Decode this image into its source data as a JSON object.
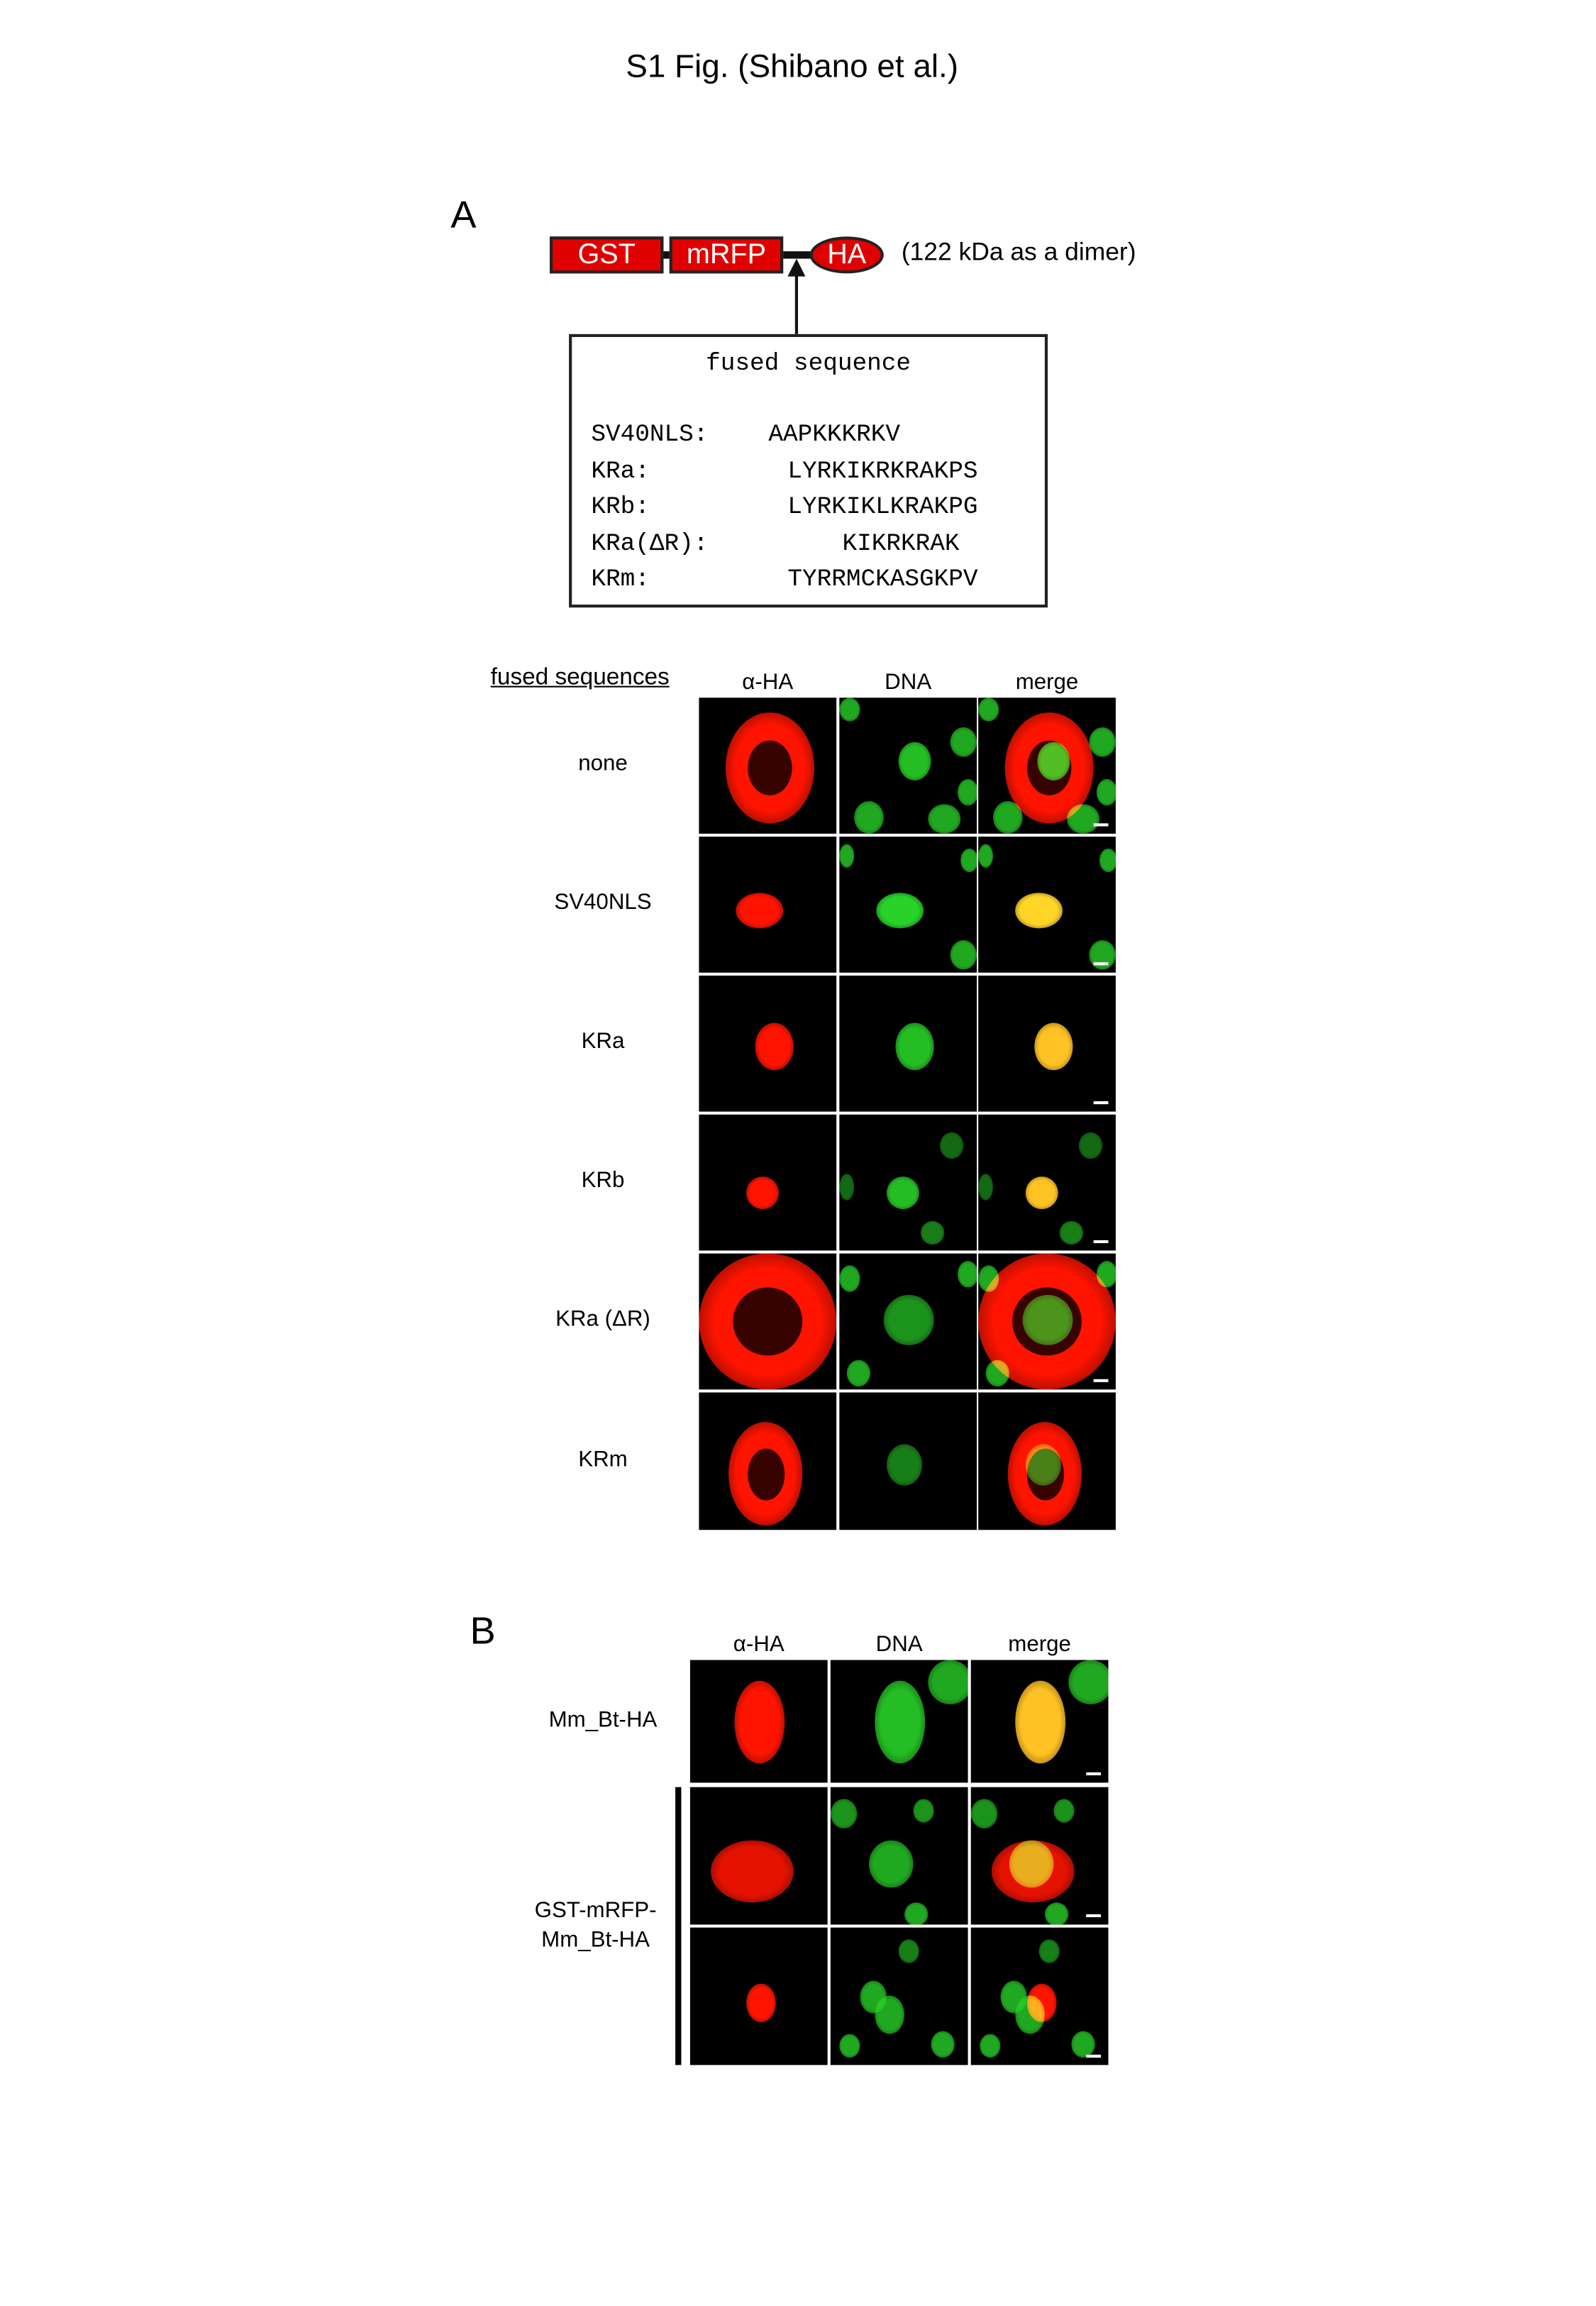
{
  "title": "S1 Fig. (Shibano et al.)",
  "panel_a": {
    "label": "A",
    "construct": {
      "gst": "GST",
      "mrfp": "mRFP",
      "ha": "HA",
      "note": "(122 kDa as a dimer)"
    },
    "sequence_box": {
      "heading": "fused sequence",
      "rows": [
        {
          "name": "SV40NLS:",
          "seq": "AAPKKKRKV"
        },
        {
          "name": "KRa:",
          "seq": "LYRKIKRKRAKPS"
        },
        {
          "name": "KRb:",
          "seq": "LYRKIKLKRAKPG"
        },
        {
          "name": "KRa(ΔR):",
          "seq": "KIKRKRAK"
        },
        {
          "name": "KRm:",
          "seq": "TYRRMCKASGKPV"
        }
      ]
    },
    "rows_header": "fused sequences",
    "columns": [
      "α-HA",
      "DNA",
      "merge"
    ],
    "rows": [
      "none",
      "SV40NLS",
      "KRa",
      "KRb",
      "KRa (ΔR)",
      "KRm"
    ]
  },
  "panel_b": {
    "label": "B",
    "columns": [
      "α-HA",
      "DNA",
      "merge"
    ],
    "row_labels": [
      "Mm_Bt-HA",
      "GST-mRFP-",
      "Mm_Bt-HA"
    ]
  },
  "colors": {
    "construct_red": "#e00000",
    "stain_red": "#ff1a00",
    "stain_green": "#1fcc1f"
  }
}
